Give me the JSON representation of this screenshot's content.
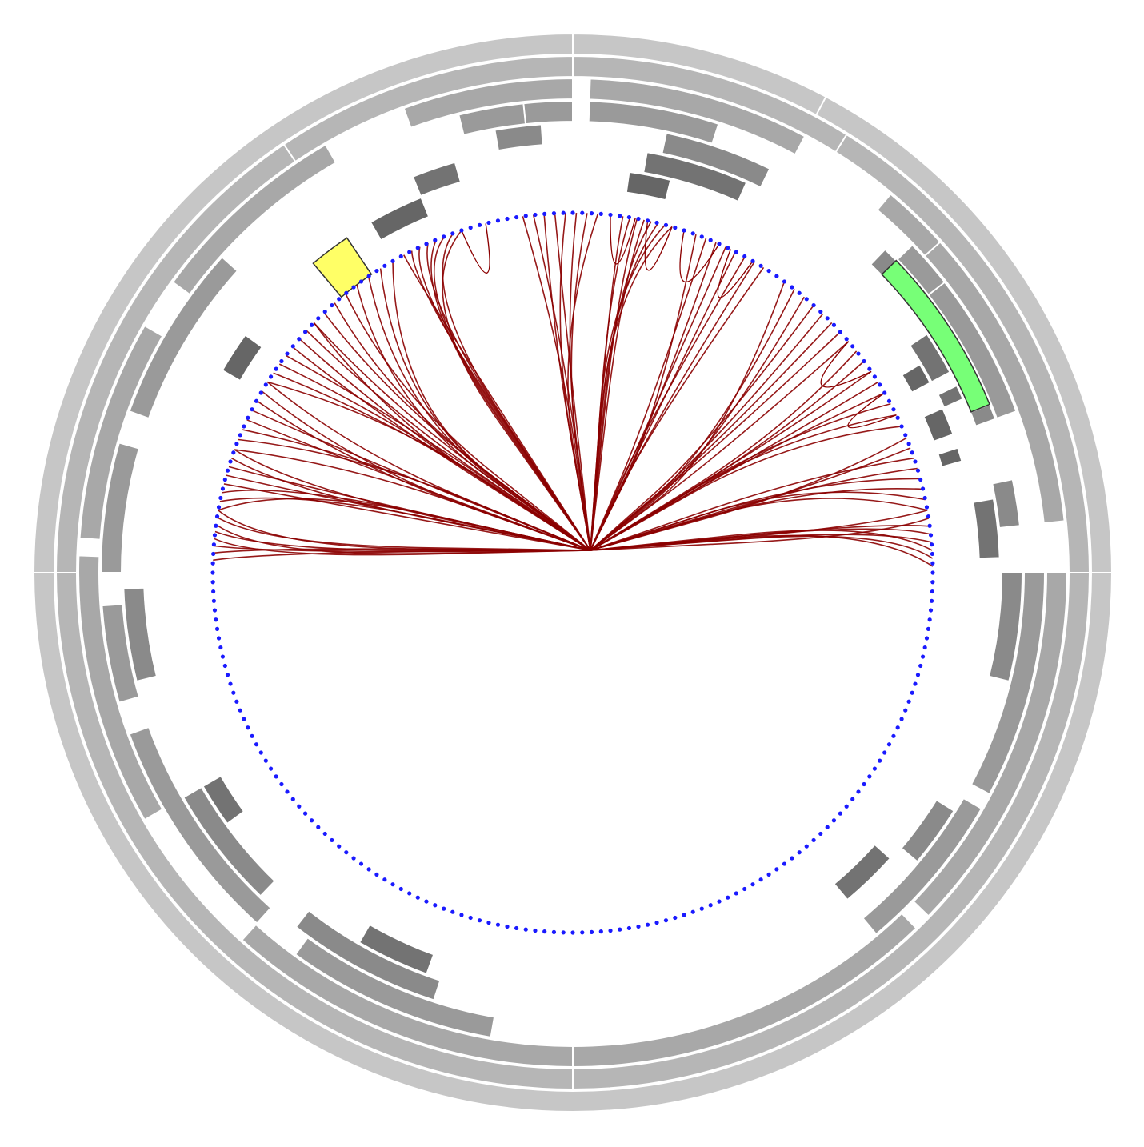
{
  "colors": {
    "background": "#ffffff",
    "ring_level_1": "#d5d5d5",
    "ring_level_2": "#c6c6c6",
    "ring_level_3": "#b6b6b6",
    "ring_level_4": "#a8a8a8",
    "ring_level_5": "#9a9a9a",
    "ring_level_6": "#8a8a8a",
    "ring_level_7": "#737373",
    "ring_level_8": "#666666",
    "highlight_yellow": "#ffff66",
    "highlight_green": "#77ff77",
    "edge_color": "#8b0000",
    "node_color": "#1a1aff"
  },
  "diagram": {
    "type": "hierarchical-edge-bundling-with-sunburst",
    "leaf_count": 240,
    "highlighted_nodes": [
      "yellow-segment",
      "green-segment"
    ]
  }
}
